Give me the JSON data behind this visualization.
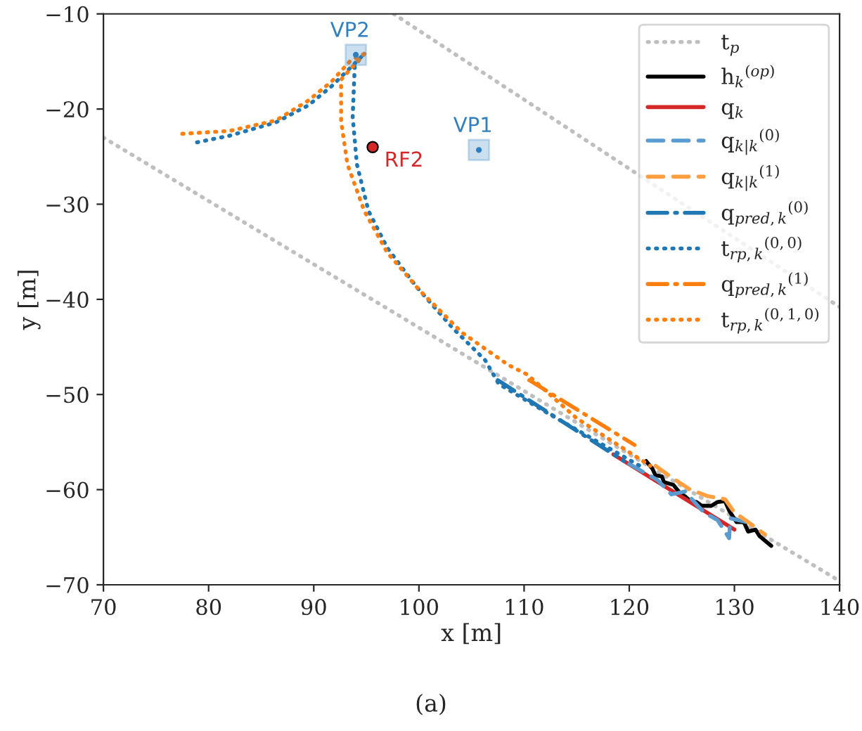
{
  "chart_data": {
    "type": "line",
    "xlabel": "x [m]",
    "ylabel": "y [m]",
    "xlim": [
      70,
      140
    ],
    "ylim": [
      -70,
      -10
    ],
    "xticks": [
      70,
      80,
      90,
      100,
      110,
      120,
      130,
      140
    ],
    "yticks": [
      -70,
      -60,
      -50,
      -40,
      -30,
      -20,
      -10
    ],
    "grid": false,
    "legend": "top right",
    "annotations": [
      "(a)"
    ],
    "series": [
      {
        "name": "t$_{p}$",
        "color": "#bfbfbf",
        "line_style": "dotted",
        "x": [
          70,
          140,
          null,
          97.6,
          140
        ],
        "values": [
          -23.0,
          -69.6,
          null,
          -10,
          -40.8
        ]
      },
      {
        "name": "h$_{k}$$^{(op)}$",
        "color": "#000000",
        "line_style": "solid",
        "x": [
          121.6,
          122.2,
          122.5,
          123.1,
          123.3,
          124.2,
          124.7,
          125.3,
          125.8,
          126.4,
          126.9,
          127.8,
          128.4,
          129.1,
          129.5,
          130.2,
          130.9,
          131.3,
          132.0,
          132.4,
          133.5
        ],
        "values": [
          -57.0,
          -57.8,
          -58.5,
          -58.6,
          -59.2,
          -59.5,
          -60.2,
          -60.7,
          -61.2,
          -61.3,
          -61.7,
          -61.7,
          -61.3,
          -61.2,
          -62.2,
          -63.4,
          -63.4,
          -64.4,
          -64.2,
          -64.9,
          -65.9
        ]
      },
      {
        "name": "q$_{k}$",
        "color": "#d62728",
        "line_style": "solid",
        "x": [
          118.5,
          130.0
        ],
        "values": [
          -56.3,
          -64.2
        ]
      },
      {
        "name": "q$_{k|k}$$^{(0)}$",
        "color": "#5a9bd0",
        "line_style": "dashed",
        "x": [
          120.0,
          122.7,
          124.0,
          125.3,
          127.1,
          128.4,
          129.5,
          129.6,
          131.1
        ],
        "values": [
          -57.3,
          -59.0,
          -60.5,
          -60.2,
          -62.4,
          -63.2,
          -65.1,
          -63.0,
          -63.4
        ]
      },
      {
        "name": "q$_{k|k}$$^{(1)}$",
        "color": "#ffa040",
        "line_style": "dashed",
        "x": [
          122.5,
          124.0,
          125.8,
          127.5,
          129.1,
          130.0,
          131.3,
          132.9
        ],
        "values": [
          -57.5,
          -58.7,
          -60.0,
          -60.7,
          -61.0,
          -62.4,
          -63.4,
          -64.7
        ]
      },
      {
        "name": "q$_{pred,k}$$^{(0)}$",
        "color": "#1f77b4",
        "line_style": "dashdot",
        "x": [
          107.5,
          119.5
        ],
        "values": [
          -48.5,
          -57.0
        ]
      },
      {
        "name": "t$_{rp,k}$$^{(0,0)}$",
        "color": "#1f77b4",
        "line_style": "dotted",
        "x": [
          78.9,
          82.0,
          86.4,
          89.5,
          91.7,
          93.9,
          94.8,
          null,
          94.8,
          93.9,
          93.7,
          94.1,
          95.2,
          97.0,
          99.7,
          103.2,
          106.3,
          107.6,
          112.0,
          121.0
        ],
        "values": [
          -23.5,
          -22.8,
          -21.4,
          -19.6,
          -17.6,
          -15.2,
          -14.2,
          null,
          -14.2,
          -15.4,
          -20.8,
          -25.8,
          -30.7,
          -34.6,
          -38.6,
          -43.0,
          -46.4,
          -48.9,
          -51.8,
          -57.5
        ]
      },
      {
        "name": "q$_{pred,k}$$^{(1)}$",
        "color": "#ff7f0e",
        "line_style": "dashdot",
        "x": [
          110.5,
          120.5
        ],
        "values": [
          -48.5,
          -55.3
        ]
      },
      {
        "name": "t$_{rp,k}$$^{(0,1,0)}$",
        "color": "#ff7f0e",
        "line_style": "dotted",
        "x": [
          77.5,
          82.0,
          86.4,
          89.5,
          91.7,
          93.5,
          94.8,
          null,
          94.8,
          92.6,
          92.6,
          93.2,
          94.8,
          97.0,
          100.1,
          104.1,
          108.5,
          110.3,
          115.0,
          122.0
        ],
        "values": [
          -22.6,
          -22.3,
          -21.2,
          -19.1,
          -17.1,
          -14.9,
          -14.2,
          null,
          -14.2,
          -16.9,
          -21.3,
          -25.8,
          -30.7,
          -35.1,
          -39.1,
          -43.5,
          -46.9,
          -47.9,
          -52.5,
          -57.5
        ]
      },
      {
        "type": "scatter",
        "name": "VP2",
        "color": "#2f7fc1",
        "marker": "square",
        "x": [
          94.0
        ],
        "values": [
          -14.3
        ]
      },
      {
        "type": "scatter",
        "name": "VP1",
        "color": "#2f7fc1",
        "marker": "square",
        "x": [
          105.7
        ],
        "values": [
          -24.3
        ]
      },
      {
        "type": "scatter",
        "name": "RF2",
        "color": "#d62728",
        "marker": "circle",
        "x": [
          95.6
        ],
        "values": [
          -24.0
        ]
      }
    ]
  }
}
